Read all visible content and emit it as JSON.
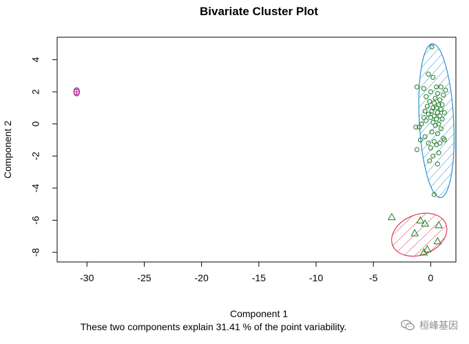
{
  "chart_data": {
    "type": "scatter",
    "title": "Bivariate Cluster Plot",
    "subtitle": "These two components explain 31.41 % of the point variability.",
    "xlabel": "Component 1",
    "ylabel": "Component 2",
    "xlim": [
      -32.6,
      2.2
    ],
    "ylim": [
      -8.6,
      5.4
    ],
    "x_ticks": [
      -30,
      -25,
      -20,
      -15,
      -10,
      -5,
      0
    ],
    "x_tick_labels": [
      "-30",
      "-25",
      "-20",
      "-15",
      "-10",
      "-5",
      "0"
    ],
    "y_ticks": [
      -8,
      -6,
      -4,
      -2,
      0,
      2,
      4
    ],
    "y_tick_labels": [
      "-8",
      "-6",
      "-4",
      "-2",
      "0",
      "2",
      "4"
    ],
    "grid": false,
    "legend": "none",
    "clusters": [
      {
        "marker": "circle",
        "point_color": "#1a7a1a",
        "ellipse_color": "#2a8fd0",
        "hatch": "diagonal",
        "ellipse": {
          "cx": 0.5,
          "cy": 0.2,
          "rx": 1.5,
          "ry": 4.8,
          "angle": -3
        },
        "points": [
          [
            0.1,
            4.8
          ],
          [
            -0.2,
            3.1
          ],
          [
            0.2,
            2.9
          ],
          [
            -1.2,
            2.3
          ],
          [
            0.5,
            2.3
          ],
          [
            0.9,
            2.3
          ],
          [
            -0.6,
            2.2
          ],
          [
            1.3,
            2.1
          ],
          [
            0.0,
            2.0
          ],
          [
            0.6,
            1.9
          ],
          [
            1.1,
            1.8
          ],
          [
            -0.4,
            1.7
          ],
          [
            0.4,
            1.6
          ],
          [
            0.8,
            1.5
          ],
          [
            -0.1,
            1.4
          ],
          [
            0.3,
            1.3
          ],
          [
            0.7,
            1.2
          ],
          [
            1.0,
            1.2
          ],
          [
            -0.3,
            1.1
          ],
          [
            0.2,
            1.0
          ],
          [
            0.5,
            1.0
          ],
          [
            0.9,
            0.9
          ],
          [
            -0.5,
            0.8
          ],
          [
            0.1,
            0.8
          ],
          [
            0.6,
            0.7
          ],
          [
            1.2,
            0.7
          ],
          [
            -0.2,
            0.6
          ],
          [
            0.3,
            0.5
          ],
          [
            0.8,
            0.5
          ],
          [
            -0.6,
            0.4
          ],
          [
            0.0,
            0.4
          ],
          [
            0.5,
            0.3
          ],
          [
            1.0,
            0.3
          ],
          [
            -0.4,
            0.2
          ],
          [
            0.2,
            0.1
          ],
          [
            0.7,
            0.0
          ],
          [
            -0.8,
            0.0
          ],
          [
            0.4,
            -0.1
          ],
          [
            -1.0,
            -0.2
          ],
          [
            0.9,
            -0.3
          ],
          [
            -1.3,
            -0.2
          ],
          [
            0.1,
            -0.5
          ],
          [
            0.6,
            -0.6
          ],
          [
            -0.5,
            -0.8
          ],
          [
            1.1,
            -0.9
          ],
          [
            -0.9,
            -1.0
          ],
          [
            0.3,
            -1.1
          ],
          [
            0.8,
            -1.2
          ],
          [
            -0.2,
            -1.2
          ],
          [
            0.5,
            -1.3
          ],
          [
            1.2,
            -1.0
          ],
          [
            0.0,
            -1.5
          ],
          [
            -1.2,
            -1.6
          ],
          [
            0.7,
            -1.8
          ],
          [
            0.2,
            -2.0
          ],
          [
            -0.1,
            -2.3
          ],
          [
            0.6,
            -2.5
          ],
          [
            0.3,
            -4.4
          ]
        ]
      },
      {
        "marker": "triangle",
        "point_color": "#1a7a1a",
        "ellipse_color": "#e03050",
        "hatch": "horizontal",
        "ellipse": {
          "cx": -1.0,
          "cy": -6.9,
          "rx": 2.5,
          "ry": 1.25,
          "angle": -22
        },
        "points": [
          [
            -3.4,
            -5.8
          ],
          [
            -0.9,
            -6.0
          ],
          [
            -0.5,
            -6.2
          ],
          [
            0.7,
            -6.3
          ],
          [
            -1.4,
            -6.8
          ],
          [
            0.6,
            -7.3
          ],
          [
            -0.3,
            -7.8
          ],
          [
            -0.6,
            -8.0
          ]
        ]
      },
      {
        "marker": "circle-plus",
        "point_color": "#e0208a",
        "ellipse_color": "#4a3aa8",
        "hatch": "none",
        "ellipse": {
          "cx": -30.9,
          "cy": 2.0,
          "rx": 0.25,
          "ry": 0.25,
          "angle": 0
        },
        "points": [
          [
            -30.9,
            2.0
          ]
        ]
      }
    ]
  },
  "watermark": {
    "text": "桓峰基因",
    "icon": "wechat-icon"
  }
}
